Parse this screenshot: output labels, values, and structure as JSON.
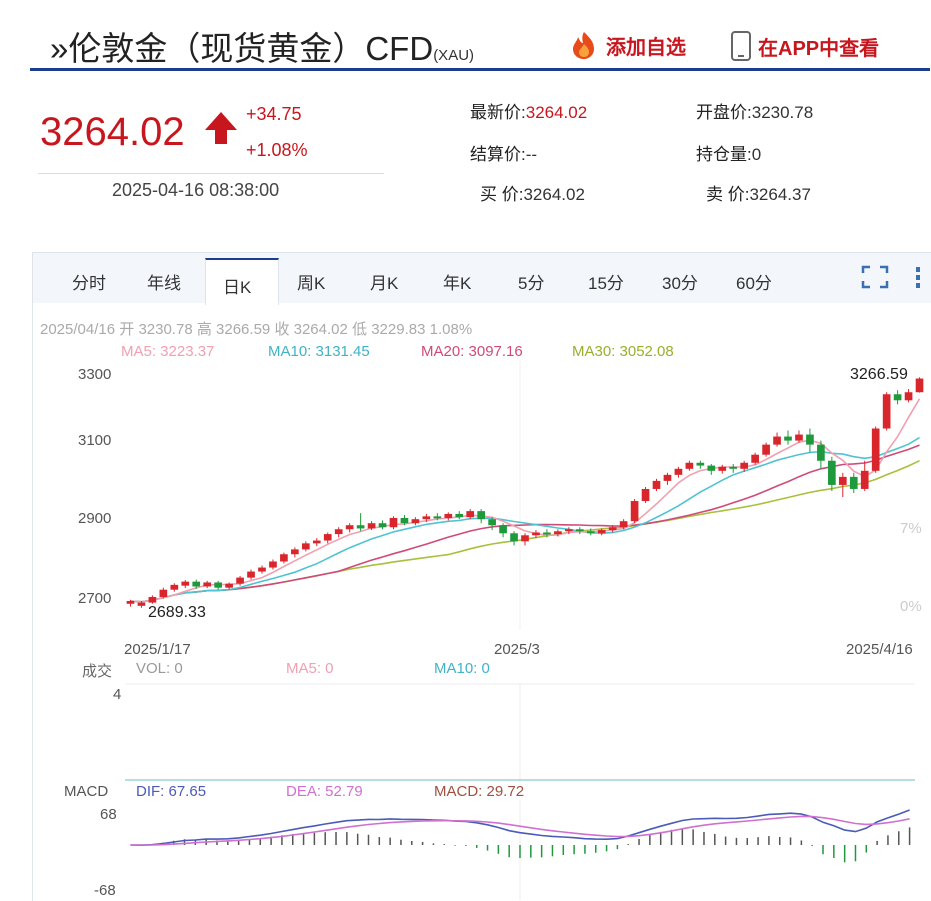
{
  "header": {
    "title": "»伦敦金（现货黄金）CFD",
    "subtitle": "(XAU)",
    "add_watchlist": "添加自选",
    "view_in_app": "在APP中查看"
  },
  "quote": {
    "price": "3264.02",
    "change": "+34.75",
    "change_pct": "+1.08%",
    "time": "2025-04-16 08:38:00"
  },
  "stats": {
    "latest_label": "最新价:",
    "latest": "3264.02",
    "open_label": "开盘价:",
    "open": "3230.78",
    "settle_label": "结算价:",
    "settle": "--",
    "oi_label": "持仓量:",
    "oi": "0",
    "bid_label": "买 价:",
    "bid": "3264.02",
    "ask_label": "卖 价:",
    "ask": "3264.37"
  },
  "tabs": [
    "分时",
    "年线",
    "日K",
    "周K",
    "月K",
    "年K",
    "5分",
    "15分",
    "30分",
    "60分"
  ],
  "active_tab": "日K",
  "ohlc_line": {
    "date": "2025/04/16",
    "open_label": "开",
    "open": "3230.78",
    "high_label": "高",
    "high": "3266.59",
    "close_label": "收",
    "close": "3264.02",
    "low_label": "低",
    "low": "3229.83",
    "pct": "1.08%"
  },
  "ma_legend": {
    "ma5": "MA5: 3223.37",
    "ma10": "MA10: 3131.45",
    "ma20": "MA20: 3097.16",
    "ma30": "MA30: 3052.08"
  },
  "volume": {
    "label": "成交",
    "vol": "VOL: 0",
    "ma5": "MA5: 0",
    "ma10": "MA10: 0",
    "axis_max": "4"
  },
  "macd": {
    "label": "MACD",
    "dif": "DIF: 67.65",
    "dea": "DEA: 52.79",
    "macd": "MACD: 29.72",
    "axis_max": "68",
    "axis_min": "-68"
  },
  "colors": {
    "up": "#d9262c",
    "down": "#1e9a3c",
    "ma5": "#f0a0b0",
    "ma10": "#4fc3d3",
    "ma20": "#d04a78",
    "ma30": "#a8c03c",
    "dif": "#4a5bb8",
    "dea": "#d070d0"
  },
  "chart_data": {
    "type": "candlestick",
    "x_ticks": [
      "2025/1/17",
      "2025/3",
      "2025/4/16"
    ],
    "y_ticks": [
      2700,
      2900,
      3100,
      3300
    ],
    "ylim": [
      2640,
      3310
    ],
    "high_annotation": "3266.59",
    "low_annotation": "2689.33",
    "side_labels": [
      "7%",
      "0%"
    ],
    "candles": [
      [
        2705,
        2712,
        2698,
        2715
      ],
      [
        2700,
        2708,
        2695,
        2712
      ],
      [
        2708,
        2722,
        2705,
        2726
      ],
      [
        2722,
        2740,
        2718,
        2745
      ],
      [
        2740,
        2752,
        2735,
        2756
      ],
      [
        2750,
        2760,
        2744,
        2764
      ],
      [
        2760,
        2748,
        2742,
        2765
      ],
      [
        2748,
        2758,
        2744,
        2762
      ],
      [
        2758,
        2745,
        2740,
        2762
      ],
      [
        2745,
        2755,
        2740,
        2758
      ],
      [
        2755,
        2770,
        2750,
        2774
      ],
      [
        2770,
        2785,
        2765,
        2790
      ],
      [
        2785,
        2795,
        2780,
        2800
      ],
      [
        2795,
        2810,
        2790,
        2815
      ],
      [
        2810,
        2828,
        2805,
        2832
      ],
      [
        2828,
        2840,
        2820,
        2845
      ],
      [
        2840,
        2855,
        2835,
        2860
      ],
      [
        2855,
        2862,
        2848,
        2868
      ],
      [
        2862,
        2878,
        2855,
        2882
      ],
      [
        2878,
        2890,
        2870,
        2895
      ],
      [
        2890,
        2900,
        2882,
        2905
      ],
      [
        2900,
        2892,
        2885,
        2930
      ],
      [
        2892,
        2905,
        2888,
        2910
      ],
      [
        2905,
        2895,
        2890,
        2912
      ],
      [
        2895,
        2918,
        2890,
        2922
      ],
      [
        2918,
        2905,
        2900,
        2925
      ],
      [
        2905,
        2915,
        2900,
        2920
      ],
      [
        2915,
        2922,
        2908,
        2928
      ],
      [
        2922,
        2918,
        2912,
        2930
      ],
      [
        2918,
        2928,
        2912,
        2932
      ],
      [
        2928,
        2920,
        2915,
        2935
      ],
      [
        2920,
        2935,
        2915,
        2940
      ],
      [
        2935,
        2915,
        2905,
        2940
      ],
      [
        2915,
        2900,
        2888,
        2920
      ],
      [
        2900,
        2880,
        2870,
        2905
      ],
      [
        2880,
        2860,
        2850,
        2885
      ],
      [
        2860,
        2875,
        2850,
        2880
      ],
      [
        2875,
        2882,
        2868,
        2888
      ],
      [
        2882,
        2878,
        2870,
        2890
      ],
      [
        2878,
        2885,
        2872,
        2890
      ],
      [
        2885,
        2890,
        2878,
        2895
      ],
      [
        2890,
        2885,
        2878,
        2895
      ],
      [
        2885,
        2880,
        2875,
        2892
      ],
      [
        2880,
        2888,
        2875,
        2892
      ],
      [
        2888,
        2895,
        2882,
        2900
      ],
      [
        2895,
        2910,
        2890,
        2915
      ],
      [
        2910,
        2960,
        2905,
        2965
      ],
      [
        2960,
        2990,
        2955,
        2995
      ],
      [
        2990,
        3010,
        2985,
        3015
      ],
      [
        3010,
        3025,
        3000,
        3030
      ],
      [
        3025,
        3040,
        3018,
        3045
      ],
      [
        3040,
        3055,
        3035,
        3060
      ],
      [
        3055,
        3048,
        3040,
        3060
      ],
      [
        3048,
        3035,
        3025,
        3052
      ],
      [
        3035,
        3045,
        3028,
        3050
      ],
      [
        3045,
        3040,
        3030,
        3052
      ],
      [
        3040,
        3055,
        3032,
        3060
      ],
      [
        3055,
        3075,
        3050,
        3080
      ],
      [
        3075,
        3100,
        3070,
        3105
      ],
      [
        3100,
        3120,
        3095,
        3130
      ],
      [
        3120,
        3110,
        3100,
        3135
      ],
      [
        3110,
        3125,
        3105,
        3135
      ],
      [
        3125,
        3100,
        3080,
        3140
      ],
      [
        3100,
        3060,
        3040,
        3110
      ],
      [
        3060,
        3000,
        2985,
        3070
      ],
      [
        3000,
        3020,
        2970,
        3030
      ],
      [
        3020,
        2990,
        2980,
        3030
      ],
      [
        2990,
        3035,
        2985,
        3060
      ],
      [
        3035,
        3140,
        3030,
        3145
      ],
      [
        3140,
        3225,
        3135,
        3230
      ],
      [
        3225,
        3210,
        3200,
        3235
      ],
      [
        3210,
        3230,
        3205,
        3238
      ],
      [
        3230,
        3264,
        3229,
        3267
      ]
    ]
  }
}
